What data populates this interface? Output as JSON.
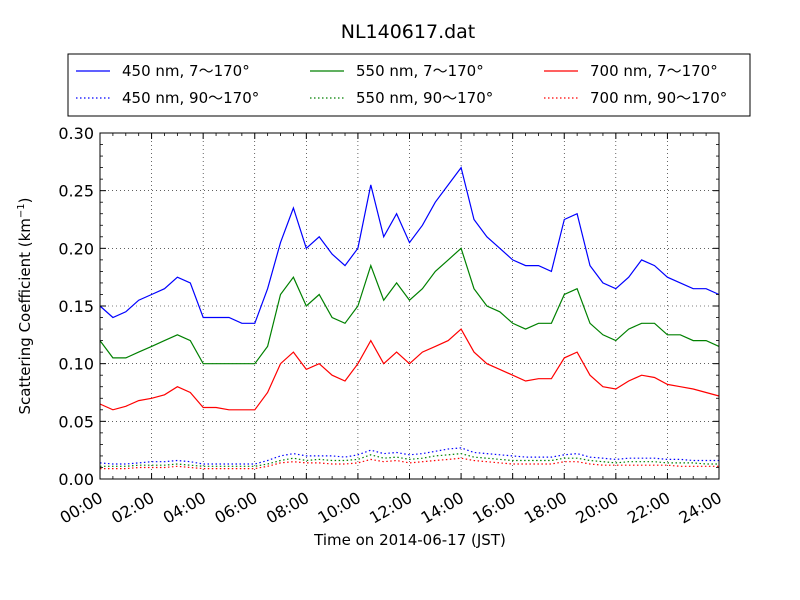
{
  "chart_data": {
    "type": "line",
    "title": "NL140617.dat",
    "xlabel": "Time on 2014-06-17 (JST)",
    "ylabel": "Scattering Coefficient (km",
    "ylabel_sup": "−1",
    "ylabel_end": ")",
    "x_ticks": [
      "00:00",
      "02:00",
      "04:00",
      "06:00",
      "08:00",
      "10:00",
      "12:00",
      "14:00",
      "16:00",
      "18:00",
      "20:00",
      "22:00",
      "24:00"
    ],
    "y_ticks": [
      "0.00",
      "0.05",
      "0.10",
      "0.15",
      "0.20",
      "0.25",
      "0.30"
    ],
    "xlim_hours": [
      0,
      24
    ],
    "ylim": [
      0,
      0.3
    ],
    "grid": true,
    "legend_position": "top (above plot)",
    "series_meta": [
      {
        "name": "450 nm, 7～170°",
        "color": "#0000ff",
        "dash": "solid"
      },
      {
        "name": "550 nm, 7～170°",
        "color": "#008000",
        "dash": "solid"
      },
      {
        "name": "700 nm, 7～170°",
        "color": "#ff0000",
        "dash": "solid"
      },
      {
        "name": "450 nm, 90～170°",
        "color": "#0000ff",
        "dash": "dotted"
      },
      {
        "name": "550 nm, 90～170°",
        "color": "#008000",
        "dash": "dotted"
      },
      {
        "name": "700 nm, 90～170°",
        "color": "#ff0000",
        "dash": "dotted"
      }
    ],
    "hours": [
      0,
      0.5,
      1,
      1.5,
      2,
      2.5,
      3,
      3.5,
      4,
      4.5,
      5,
      5.5,
      6,
      6.5,
      7,
      7.5,
      8,
      8.5,
      9,
      9.5,
      10,
      10.5,
      11,
      11.5,
      12,
      12.5,
      13,
      13.5,
      14,
      14.5,
      15,
      15.5,
      16,
      16.5,
      17,
      17.5,
      18,
      18.5,
      19,
      19.5,
      20,
      20.5,
      21,
      21.5,
      22,
      22.5,
      23,
      23.5,
      24
    ],
    "series": [
      {
        "name": "450 nm, 7～170°",
        "values": [
          0.15,
          0.14,
          0.145,
          0.155,
          0.16,
          0.165,
          0.175,
          0.17,
          0.14,
          0.14,
          0.14,
          0.135,
          0.135,
          0.165,
          0.205,
          0.235,
          0.2,
          0.21,
          0.195,
          0.185,
          0.2,
          0.255,
          0.21,
          0.23,
          0.205,
          0.22,
          0.24,
          0.255,
          0.27,
          0.225,
          0.21,
          0.2,
          0.19,
          0.185,
          0.185,
          0.18,
          0.225,
          0.23,
          0.185,
          0.17,
          0.165,
          0.175,
          0.19,
          0.185,
          0.175,
          0.17,
          0.165,
          0.165,
          0.16
        ]
      },
      {
        "name": "550 nm, 7～170°",
        "values": [
          0.12,
          0.105,
          0.105,
          0.11,
          0.115,
          0.12,
          0.125,
          0.12,
          0.1,
          0.1,
          0.1,
          0.1,
          0.1,
          0.115,
          0.16,
          0.175,
          0.15,
          0.16,
          0.14,
          0.135,
          0.15,
          0.185,
          0.155,
          0.17,
          0.155,
          0.165,
          0.18,
          0.19,
          0.2,
          0.165,
          0.15,
          0.145,
          0.135,
          0.13,
          0.135,
          0.135,
          0.16,
          0.165,
          0.135,
          0.125,
          0.12,
          0.13,
          0.135,
          0.135,
          0.125,
          0.125,
          0.12,
          0.12,
          0.115
        ]
      },
      {
        "name": "700 nm, 7～170°",
        "values": [
          0.065,
          0.06,
          0.063,
          0.068,
          0.07,
          0.073,
          0.08,
          0.075,
          0.062,
          0.062,
          0.06,
          0.06,
          0.06,
          0.075,
          0.1,
          0.11,
          0.095,
          0.1,
          0.09,
          0.085,
          0.1,
          0.12,
          0.1,
          0.11,
          0.1,
          0.11,
          0.115,
          0.12,
          0.13,
          0.11,
          0.1,
          0.095,
          0.09,
          0.085,
          0.087,
          0.087,
          0.105,
          0.11,
          0.09,
          0.08,
          0.078,
          0.085,
          0.09,
          0.088,
          0.082,
          0.08,
          0.078,
          0.075,
          0.072
        ]
      },
      {
        "name": "450 nm, 90～170°",
        "values": [
          0.014,
          0.013,
          0.013,
          0.014,
          0.015,
          0.015,
          0.016,
          0.015,
          0.013,
          0.013,
          0.013,
          0.013,
          0.013,
          0.016,
          0.02,
          0.022,
          0.02,
          0.02,
          0.02,
          0.019,
          0.021,
          0.025,
          0.022,
          0.023,
          0.021,
          0.022,
          0.024,
          0.026,
          0.027,
          0.023,
          0.022,
          0.021,
          0.02,
          0.019,
          0.019,
          0.019,
          0.021,
          0.022,
          0.019,
          0.018,
          0.017,
          0.018,
          0.018,
          0.018,
          0.017,
          0.017,
          0.016,
          0.016,
          0.016
        ]
      },
      {
        "name": "550 nm, 90～170°",
        "values": [
          0.011,
          0.011,
          0.011,
          0.012,
          0.012,
          0.012,
          0.013,
          0.012,
          0.011,
          0.011,
          0.011,
          0.011,
          0.011,
          0.013,
          0.016,
          0.018,
          0.016,
          0.017,
          0.016,
          0.016,
          0.017,
          0.021,
          0.018,
          0.019,
          0.017,
          0.018,
          0.02,
          0.021,
          0.022,
          0.019,
          0.018,
          0.017,
          0.016,
          0.016,
          0.016,
          0.016,
          0.018,
          0.018,
          0.016,
          0.015,
          0.014,
          0.015,
          0.015,
          0.015,
          0.014,
          0.014,
          0.014,
          0.013,
          0.013
        ]
      },
      {
        "name": "700 nm, 90～170°",
        "values": [
          0.009,
          0.009,
          0.009,
          0.01,
          0.01,
          0.01,
          0.011,
          0.01,
          0.009,
          0.009,
          0.009,
          0.009,
          0.009,
          0.011,
          0.014,
          0.015,
          0.014,
          0.014,
          0.013,
          0.013,
          0.014,
          0.017,
          0.015,
          0.016,
          0.014,
          0.015,
          0.016,
          0.017,
          0.018,
          0.016,
          0.015,
          0.014,
          0.013,
          0.013,
          0.013,
          0.013,
          0.015,
          0.015,
          0.013,
          0.012,
          0.012,
          0.012,
          0.012,
          0.012,
          0.012,
          0.011,
          0.011,
          0.011,
          0.011
        ]
      }
    ]
  }
}
